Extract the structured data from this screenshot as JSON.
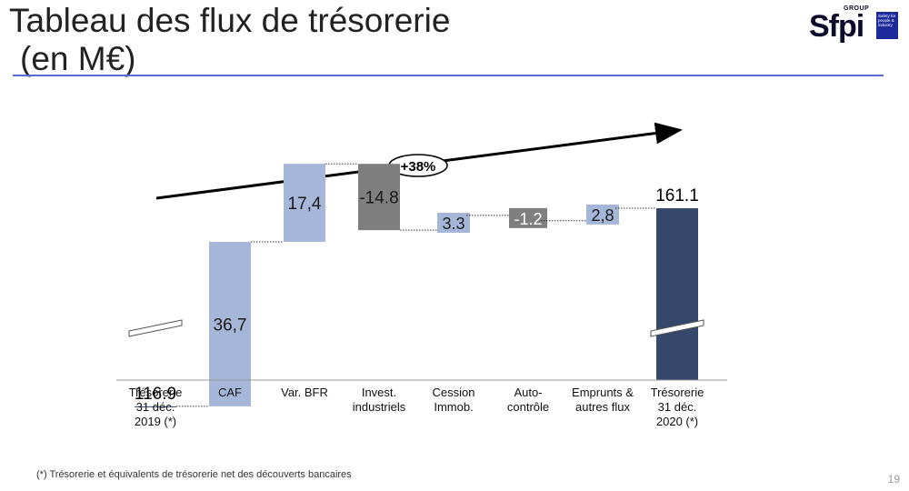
{
  "title_line1": "Tableau des flux de trésorerie",
  "title_line2": "(en M€)",
  "logo": {
    "word": "Sfpi",
    "group": "GROUP",
    "badge": "Safety for people & industry"
  },
  "growth_label": "+38%",
  "footnote": "(*) Trésorerie et équivalents de trésorerie net des découverts bancaires",
  "page_number": "19",
  "colors": {
    "total": "#35486b",
    "positive": "#a5b6d8",
    "negative": "#7f7f7f",
    "rule": "#5a6ad0"
  },
  "chart_data": {
    "type": "bar",
    "subtype": "waterfall",
    "title": "Tableau des flux de trésorerie (en M€)",
    "axis_break": true,
    "steps": [
      {
        "label": [
          "Trésorerie",
          "31 déc.",
          "2019 (*)"
        ],
        "value": 116.9,
        "kind": "total",
        "value_label": "116.9"
      },
      {
        "label": [
          "CAF"
        ],
        "value": 36.7,
        "kind": "positive",
        "value_label": "36,7"
      },
      {
        "label": [
          "Var. BFR"
        ],
        "value": 17.4,
        "kind": "positive",
        "value_label": "17,4"
      },
      {
        "label": [
          "Invest.",
          "industriels"
        ],
        "value": -14.8,
        "kind": "negative",
        "value_label": "-14.8"
      },
      {
        "label": [
          "Cession",
          "Immob."
        ],
        "value": 3.3,
        "kind": "positive",
        "value_label": "3.3"
      },
      {
        "label": [
          "Auto-",
          "contrôle"
        ],
        "value": -1.2,
        "kind": "negative",
        "value_label": "-1.2"
      },
      {
        "label": [
          "Emprunts &",
          "autres flux"
        ],
        "value": 2.8,
        "kind": "positive",
        "value_label": "2,8"
      },
      {
        "label": [
          "Trésorerie",
          "31 déc.",
          "2020 (*)"
        ],
        "value": 161.1,
        "kind": "total",
        "value_label": "161.1"
      }
    ]
  }
}
